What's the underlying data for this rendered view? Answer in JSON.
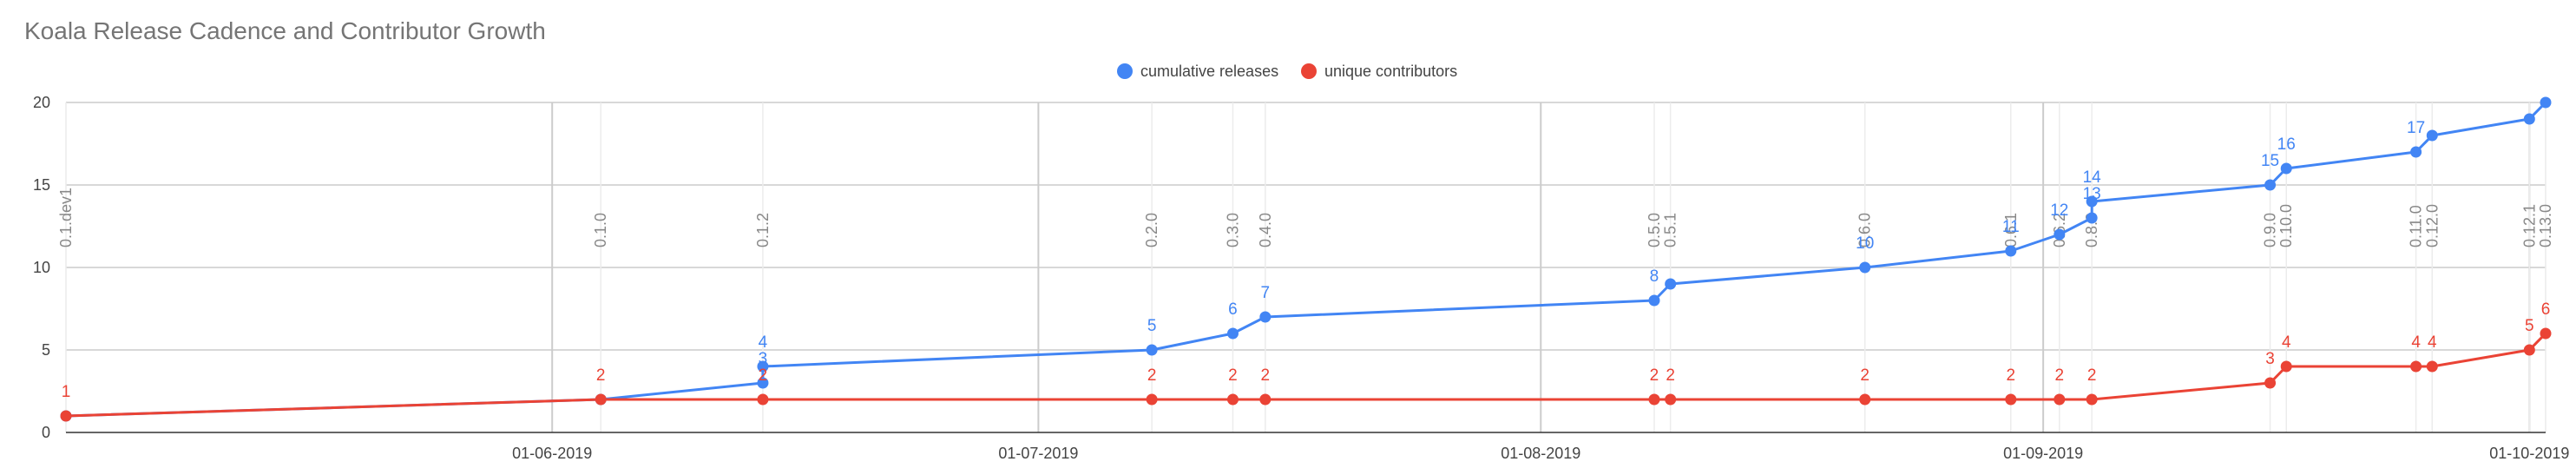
{
  "chart_data": {
    "type": "line",
    "title": "Koala Release Cadence and Contributor Growth",
    "xlabel": "",
    "ylabel": "",
    "ylim": [
      0,
      20
    ],
    "xlim": [
      "2019-05-02",
      "2019-10-02"
    ],
    "y_ticks": [
      "0",
      "5",
      "10",
      "15",
      "20"
    ],
    "x_ticks": [
      {
        "date": "2019-06-01",
        "label": "01-06-2019"
      },
      {
        "date": "2019-07-01",
        "label": "01-07-2019"
      },
      {
        "date": "2019-08-01",
        "label": "01-08-2019"
      },
      {
        "date": "2019-09-01",
        "label": "01-09-2019"
      },
      {
        "date": "2019-10-01",
        "label": "01-10-2019"
      }
    ],
    "grid": true,
    "legend_position": "top",
    "series": [
      {
        "name": "cumulative releases",
        "color": "#4285f4",
        "points": [
          {
            "date": "2019-05-02",
            "value": 1,
            "label": ""
          },
          {
            "date": "2019-06-04",
            "value": 2,
            "label": ""
          },
          {
            "date": "2019-06-14",
            "value": 3,
            "label": "3"
          },
          {
            "date": "2019-06-14",
            "value": 4,
            "label": "4"
          },
          {
            "date": "2019-07-08",
            "value": 5,
            "label": "5"
          },
          {
            "date": "2019-07-13",
            "value": 6,
            "label": "6"
          },
          {
            "date": "2019-07-15",
            "value": 7,
            "label": "7"
          },
          {
            "date": "2019-08-08",
            "value": 8,
            "label": "8"
          },
          {
            "date": "2019-08-09",
            "value": 9,
            "label": ""
          },
          {
            "date": "2019-08-21",
            "value": 10,
            "label": "10"
          },
          {
            "date": "2019-08-30",
            "value": 11,
            "label": "11"
          },
          {
            "date": "2019-09-02",
            "value": 12,
            "label": "12"
          },
          {
            "date": "2019-09-04",
            "value": 13,
            "label": "13"
          },
          {
            "date": "2019-09-04",
            "value": 14,
            "label": "14"
          },
          {
            "date": "2019-09-15",
            "value": 15,
            "label": "15"
          },
          {
            "date": "2019-09-16",
            "value": 16,
            "label": "16"
          },
          {
            "date": "2019-09-24",
            "value": 17,
            "label": "17"
          },
          {
            "date": "2019-09-25",
            "value": 18,
            "label": ""
          },
          {
            "date": "2019-10-01",
            "value": 19,
            "label": ""
          },
          {
            "date": "2019-10-02",
            "value": 20,
            "label": ""
          }
        ]
      },
      {
        "name": "unique contributors",
        "color": "#ea4335",
        "points": [
          {
            "date": "2019-05-02",
            "value": 1,
            "label": "1"
          },
          {
            "date": "2019-06-04",
            "value": 2,
            "label": "2"
          },
          {
            "date": "2019-06-14",
            "value": 2,
            "label": "2"
          },
          {
            "date": "2019-07-08",
            "value": 2,
            "label": "2"
          },
          {
            "date": "2019-07-13",
            "value": 2,
            "label": "2"
          },
          {
            "date": "2019-07-15",
            "value": 2,
            "label": "2"
          },
          {
            "date": "2019-08-08",
            "value": 2,
            "label": "2"
          },
          {
            "date": "2019-08-09",
            "value": 2,
            "label": "2"
          },
          {
            "date": "2019-08-21",
            "value": 2,
            "label": "2"
          },
          {
            "date": "2019-08-30",
            "value": 2,
            "label": "2"
          },
          {
            "date": "2019-09-02",
            "value": 2,
            "label": "2"
          },
          {
            "date": "2019-09-04",
            "value": 2,
            "label": "2"
          },
          {
            "date": "2019-09-15",
            "value": 3,
            "label": "3"
          },
          {
            "date": "2019-09-16",
            "value": 4,
            "label": "4"
          },
          {
            "date": "2019-09-24",
            "value": 4,
            "label": "4"
          },
          {
            "date": "2019-09-25",
            "value": 4,
            "label": "4"
          },
          {
            "date": "2019-10-01",
            "value": 5,
            "label": "5"
          },
          {
            "date": "2019-10-02",
            "value": 6,
            "label": "6"
          }
        ]
      }
    ],
    "annotations": [
      {
        "date": "2019-05-02",
        "text": "0.1.dev1"
      },
      {
        "date": "2019-06-04",
        "text": "0.1.0"
      },
      {
        "date": "2019-06-14",
        "text": "0.1.2"
      },
      {
        "date": "2019-07-08",
        "text": "0.2.0"
      },
      {
        "date": "2019-07-13",
        "text": "0.3.0"
      },
      {
        "date": "2019-07-15",
        "text": "0.4.0"
      },
      {
        "date": "2019-08-08",
        "text": "0.5.0"
      },
      {
        "date": "2019-08-09",
        "text": "0.5.1"
      },
      {
        "date": "2019-08-21",
        "text": "0.6.0"
      },
      {
        "date": "2019-08-30",
        "text": "0.6.1"
      },
      {
        "date": "2019-09-02",
        "text": "0.6.2"
      },
      {
        "date": "2019-09-04",
        "text": "0.8.0"
      },
      {
        "date": "2019-09-15",
        "text": "0.9.0"
      },
      {
        "date": "2019-09-16",
        "text": "0.10.0"
      },
      {
        "date": "2019-09-24",
        "text": "0.11.0"
      },
      {
        "date": "2019-09-25",
        "text": "0.12.0"
      },
      {
        "date": "2019-10-01",
        "text": "0.12.1"
      },
      {
        "date": "2019-10-02",
        "text": "0.13.0"
      }
    ]
  }
}
